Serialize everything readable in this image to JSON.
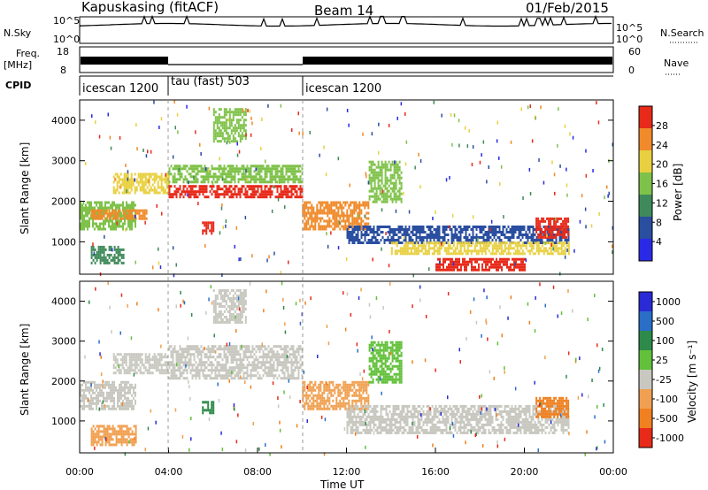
{
  "header": {
    "station": "Kapuskasing (fitACF)",
    "beam": "Beam 14",
    "date": "01/Feb/2015"
  },
  "top_panels": {
    "nsky_label": "N.Sky",
    "nsky_ticks": [
      "10^5",
      "10^0"
    ],
    "nsearch_label": "N.Search",
    "nsearch_ticks": [
      "10^5",
      "10^0"
    ],
    "freq_label_1": "Freq.",
    "freq_label_2": "[MHz]",
    "freq_ticks": [
      "18",
      "8"
    ],
    "nave_label": "Nave",
    "nave_ticks": [
      "60",
      "0"
    ],
    "cpid_label": "CPID",
    "cpid_segments": [
      {
        "label": "icescan 1200",
        "start": 0,
        "end": 4
      },
      {
        "label": "tau (fast) 503",
        "start": 4,
        "end": 10
      },
      {
        "label": "icescan 1200",
        "start": 10,
        "end": 24
      }
    ]
  },
  "chart_data": [
    {
      "type": "heatmap",
      "name": "power",
      "ylabel": "Slant Range [km]",
      "yticks": [
        "1000",
        "2000",
        "3000",
        "4000"
      ],
      "ylim": [
        200,
        4500
      ],
      "xlim": [
        0,
        24
      ],
      "colorbar_label": "Power [dB]",
      "colorbar_ticks": [
        "4",
        "8",
        "12",
        "16",
        "20",
        "24",
        "28"
      ],
      "colorbar_colors": [
        "#2a2ae6",
        "#2a4ea0",
        "#3f8a5a",
        "#7fc24a",
        "#e8d040",
        "#f08a2a",
        "#e82a1a"
      ],
      "regions": [
        {
          "t0": 0.0,
          "t1": 2.5,
          "r0": 1300,
          "r1": 2000,
          "level": 3
        },
        {
          "t0": 0.5,
          "t1": 3.0,
          "r0": 1600,
          "r1": 1800,
          "level": 5
        },
        {
          "t0": 1.5,
          "t1": 4.0,
          "r0": 2200,
          "r1": 2700,
          "level": 4
        },
        {
          "t0": 0.5,
          "t1": 2.0,
          "r0": 500,
          "r1": 900,
          "level": 2
        },
        {
          "t0": 4.0,
          "t1": 10.0,
          "r0": 2500,
          "r1": 2900,
          "level": 3
        },
        {
          "t0": 4.0,
          "t1": 10.0,
          "r0": 2100,
          "r1": 2400,
          "level": 6
        },
        {
          "t0": 6.0,
          "t1": 7.5,
          "r0": 3500,
          "r1": 4300,
          "level": 3
        },
        {
          "t0": 5.5,
          "t1": 6.0,
          "r0": 1200,
          "r1": 1500,
          "level": 6
        },
        {
          "t0": 10.0,
          "t1": 13.0,
          "r0": 1300,
          "r1": 2000,
          "level": 5
        },
        {
          "t0": 12.0,
          "t1": 22.0,
          "r0": 1000,
          "r1": 1400,
          "level": 1
        },
        {
          "t0": 14.0,
          "t1": 22.0,
          "r0": 700,
          "r1": 1000,
          "level": 4
        },
        {
          "t0": 16.0,
          "t1": 20.0,
          "r0": 300,
          "r1": 600,
          "level": 6
        },
        {
          "t0": 20.5,
          "t1": 22.0,
          "r0": 1100,
          "r1": 1600,
          "level": 7
        },
        {
          "t0": 13.0,
          "t1": 14.5,
          "r0": 2000,
          "r1": 3000,
          "level": 3
        }
      ]
    },
    {
      "type": "heatmap",
      "name": "velocity",
      "ylabel": "Slant Range [km]",
      "yticks": [
        "1000",
        "2000",
        "3000",
        "4000"
      ],
      "ylim": [
        200,
        4500
      ],
      "xlim": [
        0,
        24
      ],
      "xlabel": "Time UT",
      "xticks": [
        "00:00",
        "04:00",
        "08:00",
        "12:00",
        "16:00",
        "20:00",
        "00:00"
      ],
      "colorbar_label": "Velocity [m s⁻¹]",
      "colorbar_ticks": [
        "1000",
        "500",
        "100",
        "25",
        "-25",
        "-100",
        "-500",
        "-1000"
      ],
      "colorbar_colors": [
        "#2a2ad6",
        "#2a6ec8",
        "#2e8a4a",
        "#62c03a",
        "#c8c8c0",
        "#f0a050",
        "#f08020",
        "#e82a1a"
      ],
      "regions": [
        {
          "t0": 0.0,
          "t1": 2.5,
          "r0": 1300,
          "r1": 2000,
          "level": 4
        },
        {
          "t0": 1.5,
          "t1": 4.0,
          "r0": 2200,
          "r1": 2700,
          "level": 4
        },
        {
          "t0": 0.5,
          "t1": 2.5,
          "r0": 400,
          "r1": 900,
          "level": 5
        },
        {
          "t0": 4.0,
          "t1": 10.0,
          "r0": 2100,
          "r1": 2900,
          "level": 4
        },
        {
          "t0": 6.0,
          "t1": 7.5,
          "r0": 3500,
          "r1": 4300,
          "level": 4
        },
        {
          "t0": 5.5,
          "t1": 6.0,
          "r0": 1200,
          "r1": 1500,
          "level": 2
        },
        {
          "t0": 10.0,
          "t1": 13.0,
          "r0": 1300,
          "r1": 2000,
          "level": 5
        },
        {
          "t0": 12.0,
          "t1": 22.0,
          "r0": 700,
          "r1": 1400,
          "level": 4
        },
        {
          "t0": 20.5,
          "t1": 22.0,
          "r0": 1100,
          "r1": 1600,
          "level": 6
        },
        {
          "t0": 13.0,
          "t1": 14.5,
          "r0": 2000,
          "r1": 3000,
          "level": 3
        }
      ]
    }
  ]
}
